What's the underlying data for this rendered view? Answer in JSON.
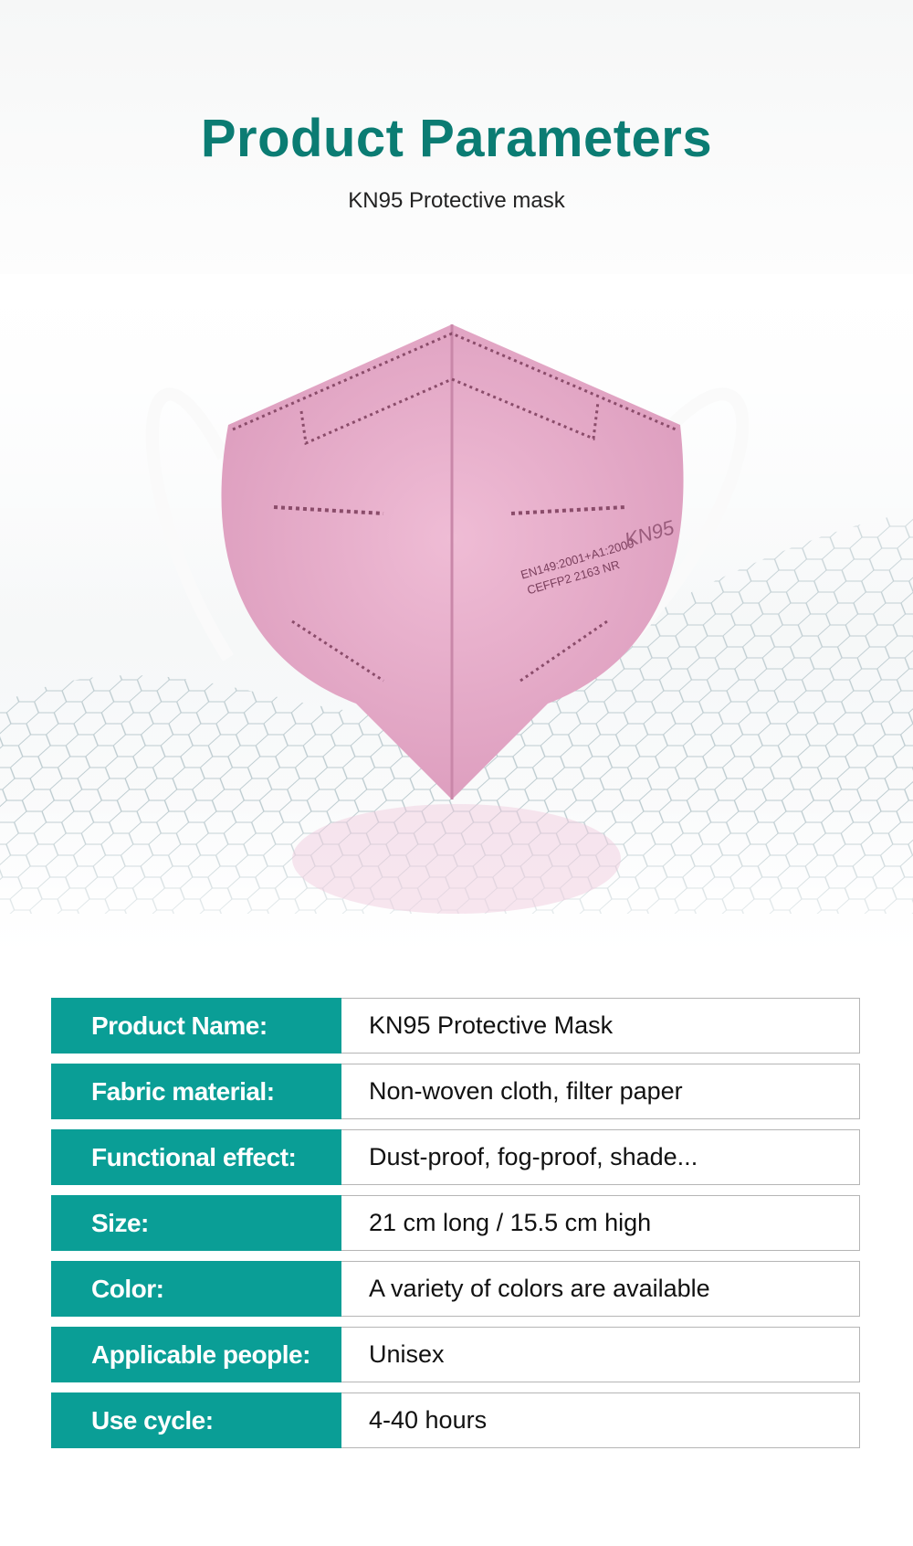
{
  "header": {
    "title": "Product Parameters",
    "subtitle": "KN95 Protective mask"
  },
  "product_image": {
    "color": "#e8aecb",
    "print_line1": "EN149:2001+A1:2009",
    "print_line2": "FFP2 2163 NR",
    "logo": "KN95",
    "ce_mark": "CE"
  },
  "accent_color": "#0a9e96",
  "parameters": [
    {
      "label": "Product Name:",
      "value": "KN95 Protective Mask"
    },
    {
      "label": "Fabric material:",
      "value": "Non-woven cloth, filter paper"
    },
    {
      "label": "Functional effect:",
      "value": "Dust-proof, fog-proof, shade..."
    },
    {
      "label": "Size:",
      "value": "21 cm long / 15.5 cm high"
    },
    {
      "label": "Color:",
      "value": "A variety of colors are available"
    },
    {
      "label": "Applicable people:",
      "value": "Unisex"
    },
    {
      "label": "Use cycle:",
      "value": "4-40 hours"
    }
  ]
}
